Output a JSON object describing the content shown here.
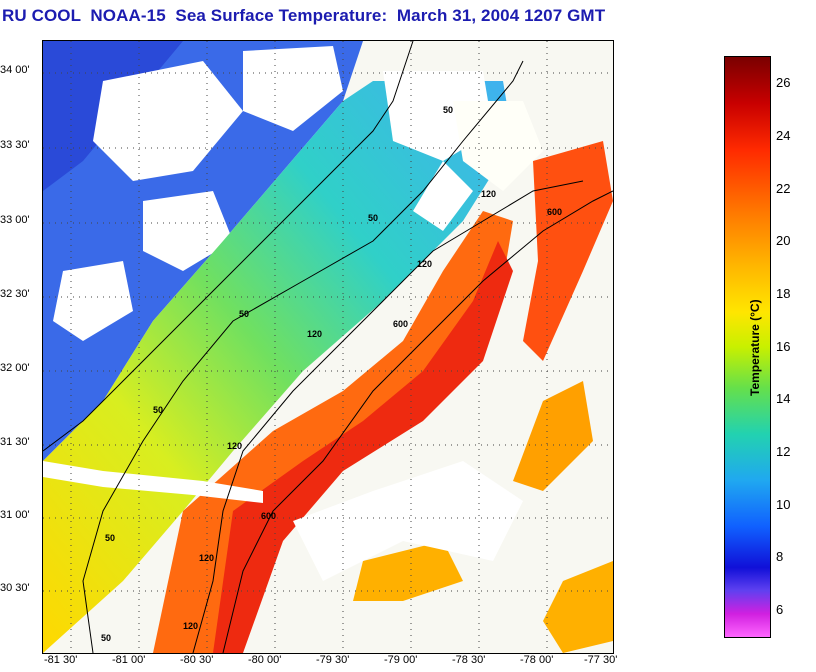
{
  "title": "RU COOL  NOAA-15  Sea Surface Temperature:  March 31, 2004 1207 GMT",
  "map": {
    "lat_labels": [
      "34 00'",
      "33 30'",
      "33 00'",
      "32 30'",
      "32 00'",
      "31 30'",
      "31 00'",
      "30 30'"
    ],
    "lon_labels": [
      "-81 30'",
      "-81 00'",
      "-80 30'",
      "-80 00'",
      "-79 30'",
      "-79 00'",
      "-78 30'",
      "-78 00'",
      "-77 30'"
    ],
    "contour_labels": [
      "50",
      "50",
      "50",
      "50",
      "50",
      "50",
      "120",
      "120",
      "120",
      "120",
      "120",
      "120",
      "600",
      "600",
      "600"
    ]
  },
  "colorbar": {
    "label": "Temperature (°C)",
    "ticks": [
      "26",
      "24",
      "22",
      "20",
      "18",
      "16",
      "14",
      "12",
      "10",
      "8",
      "6"
    ],
    "range": [
      5,
      27
    ]
  }
}
